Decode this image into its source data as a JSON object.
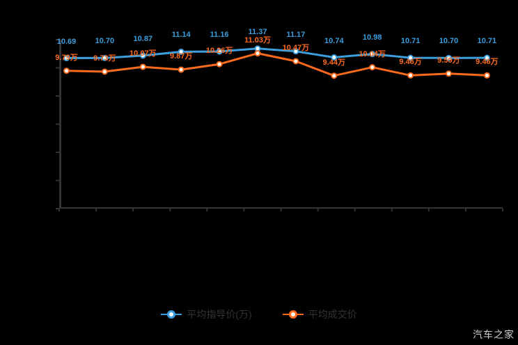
{
  "watermark": {
    "text": "汽车之家"
  },
  "legend": {
    "items": [
      {
        "label": "平均指导价(万)",
        "color": "#3C9EDC"
      },
      {
        "label": "平均成交价",
        "color": "#FC6A1C"
      }
    ]
  },
  "colors": {
    "background": "#000000",
    "axis": "#333333",
    "blue_series": "#3C9EDC",
    "orange_series": "#FC6A1C",
    "marker_fill": "#FFFFFF",
    "legend_text": "#333333",
    "watermark_text": "#CFCFCF"
  },
  "chart_data": {
    "type": "line",
    "title": "",
    "xlabel": "",
    "ylabel": "",
    "x_tick_labels_visible": false,
    "y_tick_labels_visible": false,
    "grid": false,
    "legend_position": "bottom",
    "ylim": [
      0,
      12
    ],
    "y_tick_step": 2,
    "num_points": 12,
    "series": [
      {
        "name": "平均指导价(万)",
        "color": "#3C9EDC",
        "values": [
          10.69,
          10.7,
          10.87,
          11.14,
          11.16,
          11.37,
          11.17,
          10.74,
          10.98,
          10.71,
          10.7,
          10.71
        ],
        "labels": [
          "10.69",
          "10.70",
          "10.87",
          "11.14",
          "11.16",
          "11.37",
          "11.17",
          "10.74",
          "10.98",
          "10.71",
          "10.70",
          "10.71"
        ]
      },
      {
        "name": "平均成交价",
        "color": "#FC6A1C",
        "values": [
          9.79,
          9.73,
          10.07,
          9.87,
          10.26,
          11.03,
          10.47,
          9.44,
          10.04,
          9.46,
          9.59,
          9.46
        ],
        "labels": [
          "9.79万",
          "9.73万",
          "10.07万",
          "9.87万",
          "10.26万",
          "11.03万",
          "10.47万",
          "9.44万",
          "10.04万",
          "9.46万",
          "9.59万",
          "9.46万"
        ]
      }
    ]
  }
}
